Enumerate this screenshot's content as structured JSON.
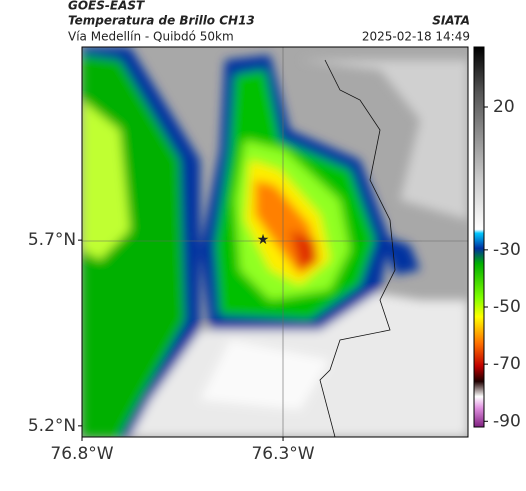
{
  "header": {
    "source": "GOES-EAST",
    "title": "Temperatura de Brillo CH13",
    "subtitle": "Vía Medellín - Quibdó 50km",
    "org": "SIATA",
    "datetime": "2025-02-18 14:49"
  },
  "map": {
    "xlim": [
      -76.8,
      -75.84
    ],
    "ylim": [
      5.17,
      6.22
    ],
    "xticks": [
      {
        "value": -76.8,
        "label": "76.8°W"
      },
      {
        "value": -76.3,
        "label": "76.3°W"
      }
    ],
    "yticks": [
      {
        "value": 5.7,
        "label": "5.7°N"
      },
      {
        "value": 5.2,
        "label": "5.2°N"
      }
    ]
  },
  "colorbar": {
    "lim": [
      41,
      -92
    ],
    "ticks": [
      20,
      -30,
      -50,
      -70,
      -90
    ]
  }
}
